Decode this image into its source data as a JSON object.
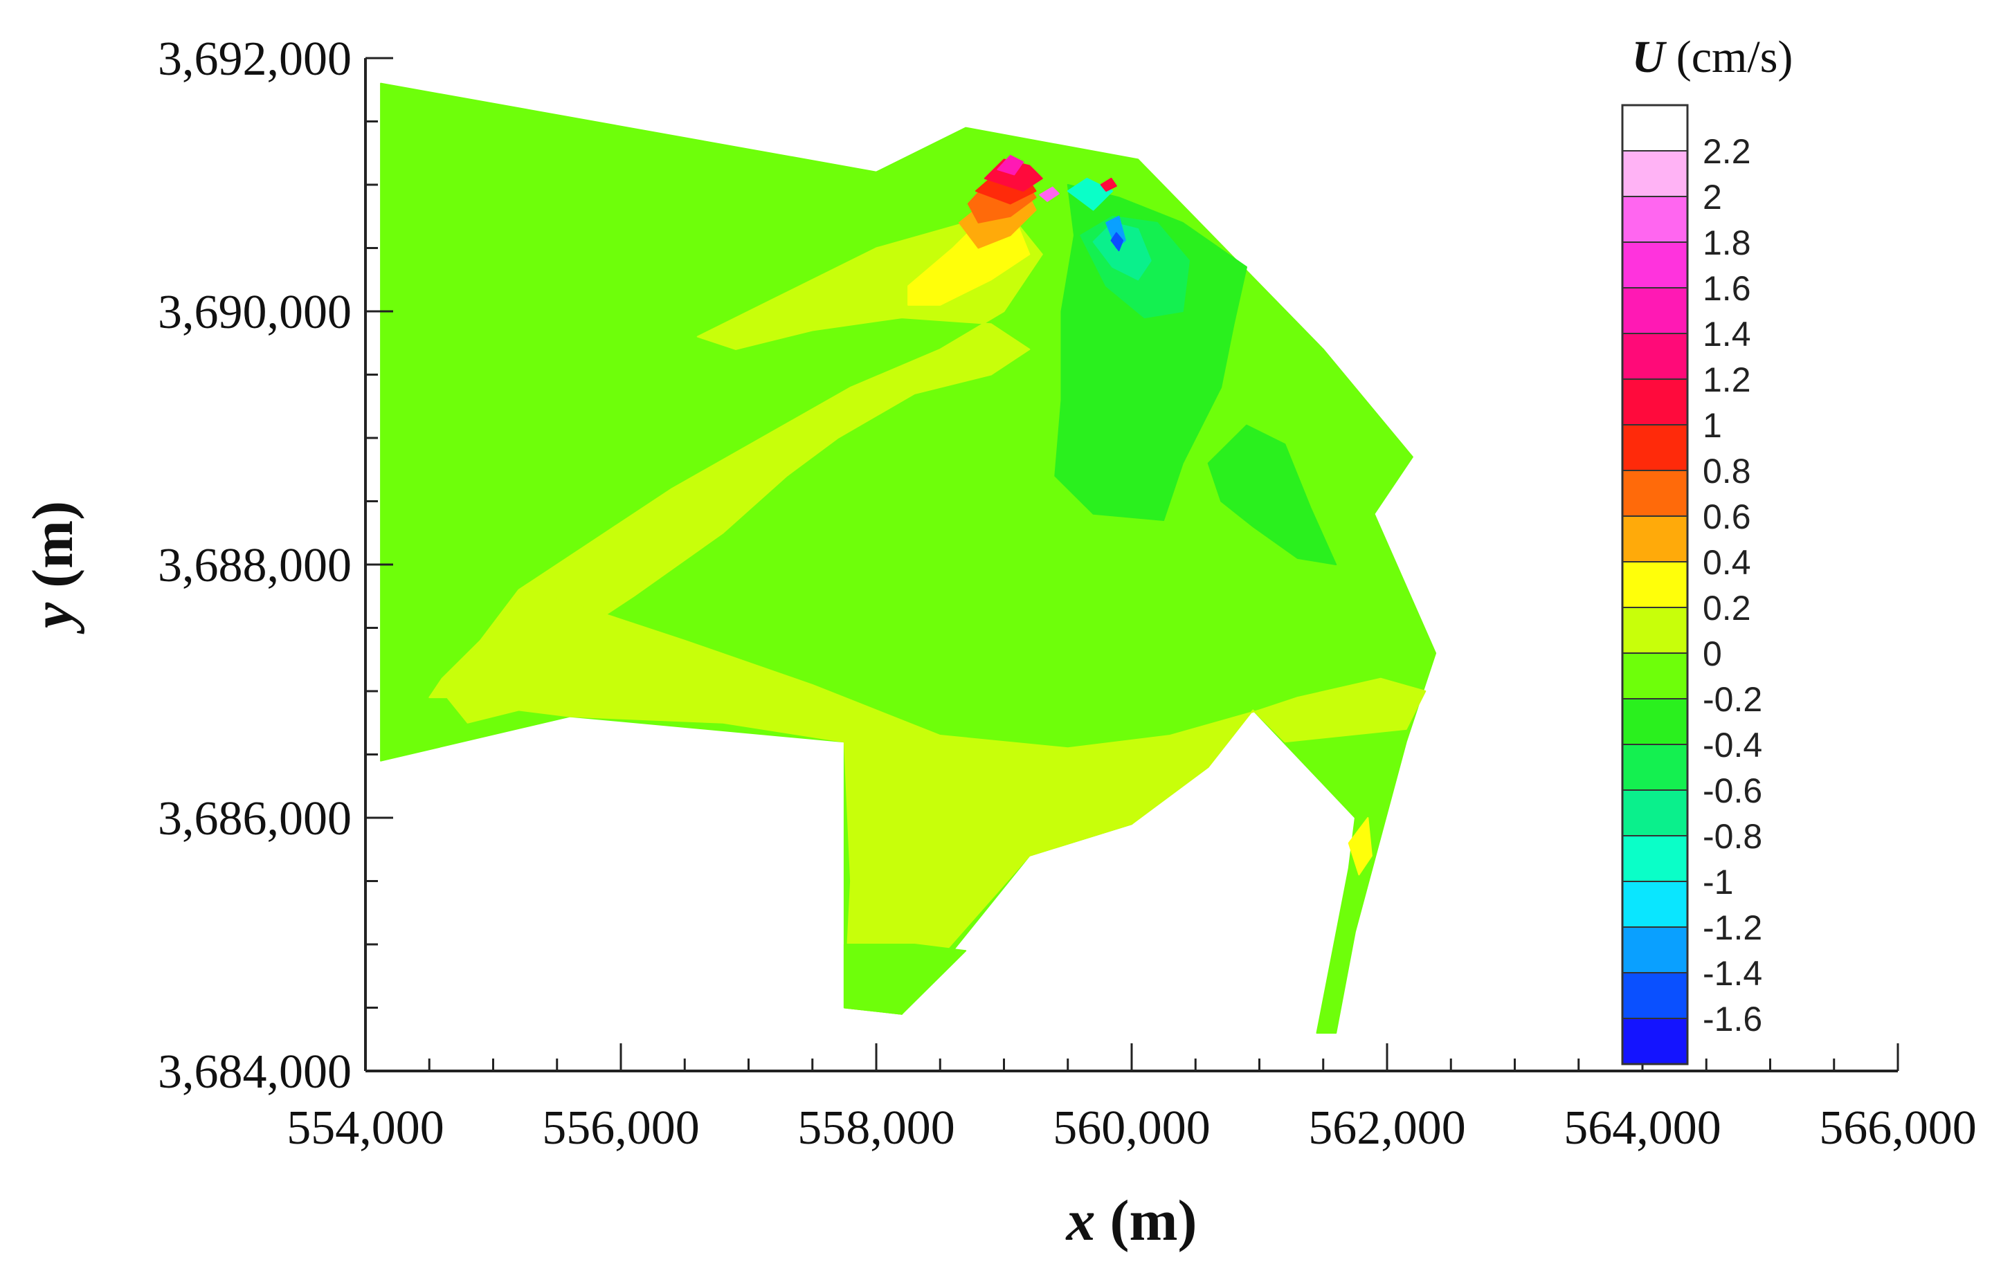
{
  "chart_data": {
    "type": "heatmap",
    "subtype": "filled contour map",
    "xlabel": {
      "var": "x",
      "unit": " (m)"
    },
    "ylabel": {
      "var": "y",
      "unit": " (m)"
    },
    "xlim": [
      554000,
      566000
    ],
    "ylim": [
      3684000,
      3692000
    ],
    "x_ticks": [
      {
        "v": 554000,
        "label": "554,000"
      },
      {
        "v": 556000,
        "label": "556,000"
      },
      {
        "v": 558000,
        "label": "558,000"
      },
      {
        "v": 560000,
        "label": "560,000"
      },
      {
        "v": 562000,
        "label": "562,000"
      },
      {
        "v": 564000,
        "label": "564,000"
      },
      {
        "v": 566000,
        "label": "566,000"
      }
    ],
    "y_ticks": [
      {
        "v": 3684000,
        "label": "3,684,000"
      },
      {
        "v": 3686000,
        "label": "3,686,000"
      },
      {
        "v": 3688000,
        "label": "3,688,000"
      },
      {
        "v": 3690000,
        "label": "3,690,000"
      },
      {
        "v": 3692000,
        "label": "3,692,000"
      }
    ],
    "grid": false,
    "colorbar": {
      "var": "U",
      "unit": " (cm/s)",
      "placement": "right",
      "levels": [
        {
          "label": "2.2",
          "value": 2.2,
          "color": "#ffffff"
        },
        {
          "label": "2",
          "value": 2.0,
          "color": "#ffb3f5"
        },
        {
          "label": "1.8",
          "value": 1.8,
          "color": "#ff66f0"
        },
        {
          "label": "1.6",
          "value": 1.6,
          "color": "#ff33dd"
        },
        {
          "label": "1.4",
          "value": 1.4,
          "color": "#ff19b4"
        },
        {
          "label": "1.2",
          "value": 1.2,
          "color": "#ff0a78"
        },
        {
          "label": "1",
          "value": 1.0,
          "color": "#ff0a3c"
        },
        {
          "label": "0.8",
          "value": 0.8,
          "color": "#ff2a0a"
        },
        {
          "label": "0.6",
          "value": 0.6,
          "color": "#ff6a0a"
        },
        {
          "label": "0.4",
          "value": 0.4,
          "color": "#ffaa0a"
        },
        {
          "label": "0.2",
          "value": 0.2,
          "color": "#ffff0a"
        },
        {
          "label": "0",
          "value": 0.0,
          "color": "#c8ff0a"
        },
        {
          "label": "-0.2",
          "value": -0.2,
          "color": "#6eff0a"
        },
        {
          "label": "-0.4",
          "value": -0.4,
          "color": "#2af01e"
        },
        {
          "label": "-0.6",
          "value": -0.6,
          "color": "#14f050"
        },
        {
          "label": "-0.8",
          "value": -0.8,
          "color": "#0af08c"
        },
        {
          "label": "-1",
          "value": -1.0,
          "color": "#0affc8"
        },
        {
          "label": "-1.2",
          "value": -1.2,
          "color": "#0ae6ff"
        },
        {
          "label": "-1.4",
          "value": -1.4,
          "color": "#0aa0ff"
        },
        {
          "label": "-1.6",
          "value": -1.6,
          "color": "#0a50ff"
        },
        {
          "label": "",
          "value": -1.8,
          "color": "#1414ff"
        }
      ]
    },
    "domain_outline": [
      [
        554120,
        3691800
      ],
      [
        555200,
        3691700
      ],
      [
        556200,
        3691500
      ],
      [
        557200,
        3691400
      ],
      [
        558000,
        3691100
      ],
      [
        558500,
        3691000
      ],
      [
        558700,
        3691450
      ],
      [
        558900,
        3691300
      ],
      [
        559200,
        3691100
      ],
      [
        559600,
        3691050
      ],
      [
        560050,
        3691200
      ],
      [
        560500,
        3690800
      ],
      [
        561000,
        3690350
      ],
      [
        561500,
        3689700
      ],
      [
        561900,
        3689300
      ],
      [
        562200,
        3688850
      ],
      [
        561900,
        3688400
      ],
      [
        562000,
        3688100
      ],
      [
        562200,
        3687800
      ],
      [
        562380,
        3687300
      ],
      [
        562300,
        3686950
      ],
      [
        562150,
        3686600
      ],
      [
        562000,
        3686300
      ],
      [
        561850,
        3685900
      ],
      [
        561850,
        3685600
      ],
      [
        561750,
        3685100
      ],
      [
        561700,
        3684750
      ],
      [
        561600,
        3684300
      ],
      [
        561450,
        3684300
      ],
      [
        561500,
        3684700
      ],
      [
        561600,
        3685100
      ],
      [
        561700,
        3685600
      ],
      [
        561750,
        3686000
      ],
      [
        561550,
        3686300
      ],
      [
        561200,
        3686600
      ],
      [
        560950,
        3686850
      ],
      [
        560600,
        3686400
      ],
      [
        560000,
        3685950
      ],
      [
        559200,
        3685700
      ],
      [
        558500,
        3684900
      ],
      [
        558200,
        3684450
      ],
      [
        557750,
        3684500
      ],
      [
        557800,
        3685500
      ],
      [
        557750,
        3686600
      ],
      [
        556800,
        3686750
      ],
      [
        555600,
        3686800
      ],
      [
        555200,
        3686850
      ],
      [
        554800,
        3686750
      ],
      [
        554300,
        3686500
      ],
      [
        554120,
        3686450
      ]
    ],
    "regions": [
      {
        "level": "-0.2",
        "points": [
          [
            554120,
            3691800
          ],
          [
            558000,
            3691100
          ],
          [
            558700,
            3691450
          ],
          [
            560050,
            3691200
          ],
          [
            561500,
            3689700
          ],
          [
            562200,
            3688850
          ],
          [
            561900,
            3688400
          ],
          [
            562380,
            3687300
          ],
          [
            562150,
            3686600
          ],
          [
            561750,
            3685100
          ],
          [
            561600,
            3684300
          ],
          [
            561450,
            3684300
          ],
          [
            561700,
            3685600
          ],
          [
            561750,
            3686000
          ],
          [
            560950,
            3686850
          ],
          [
            560000,
            3685950
          ],
          [
            559200,
            3685700
          ],
          [
            558200,
            3684450
          ],
          [
            557750,
            3684500
          ],
          [
            557750,
            3686600
          ],
          [
            555600,
            3686800
          ],
          [
            554120,
            3686450
          ]
        ]
      },
      {
        "level": "0",
        "points": [
          [
            556600,
            3689800
          ],
          [
            557200,
            3690100
          ],
          [
            558000,
            3690500
          ],
          [
            558700,
            3690700
          ],
          [
            559100,
            3690700
          ],
          [
            559300,
            3690450
          ],
          [
            559000,
            3690000
          ],
          [
            558500,
            3689700
          ],
          [
            557800,
            3689400
          ],
          [
            557100,
            3689000
          ],
          [
            556400,
            3688600
          ],
          [
            555800,
            3688200
          ],
          [
            555200,
            3687800
          ],
          [
            554900,
            3687400
          ],
          [
            554600,
            3687100
          ],
          [
            554500,
            3686950
          ],
          [
            554800,
            3686950
          ],
          [
            555500,
            3687350
          ],
          [
            556100,
            3687750
          ],
          [
            556800,
            3688250
          ],
          [
            557300,
            3688700
          ],
          [
            557700,
            3689000
          ],
          [
            558300,
            3689350
          ],
          [
            558900,
            3689500
          ],
          [
            559200,
            3689700
          ],
          [
            558900,
            3689900
          ],
          [
            558200,
            3689950
          ],
          [
            557500,
            3689850
          ],
          [
            556900,
            3689700
          ]
        ]
      },
      {
        "level": "0",
        "points": [
          [
            555300,
            3687800
          ],
          [
            556500,
            3687400
          ],
          [
            557500,
            3687050
          ],
          [
            558500,
            3686650
          ],
          [
            559500,
            3686550
          ],
          [
            560300,
            3686650
          ],
          [
            561000,
            3686850
          ],
          [
            561300,
            3686950
          ],
          [
            561950,
            3687100
          ],
          [
            562300,
            3687000
          ],
          [
            562150,
            3686700
          ],
          [
            561200,
            3686600
          ],
          [
            560950,
            3686850
          ],
          [
            560600,
            3686400
          ],
          [
            560000,
            3685950
          ],
          [
            559200,
            3685700
          ],
          [
            558500,
            3684900
          ],
          [
            558200,
            3684450
          ],
          [
            557750,
            3684500
          ],
          [
            557800,
            3685500
          ],
          [
            557750,
            3686600
          ],
          [
            556800,
            3686750
          ],
          [
            555600,
            3686800
          ],
          [
            555200,
            3686850
          ],
          [
            554800,
            3686750
          ],
          [
            554600,
            3687000
          ],
          [
            555000,
            3687500
          ]
        ]
      },
      {
        "level": "-0.2",
        "points": [
          [
            557750,
            3685000
          ],
          [
            558300,
            3685000
          ],
          [
            558700,
            3684950
          ],
          [
            558200,
            3684450
          ],
          [
            557750,
            3684500
          ]
        ]
      },
      {
        "level": "-0.4",
        "points": [
          [
            559500,
            3691000
          ],
          [
            559900,
            3690900
          ],
          [
            560400,
            3690700
          ],
          [
            560900,
            3690350
          ],
          [
            560800,
            3689900
          ],
          [
            560700,
            3689400
          ],
          [
            560400,
            3688800
          ],
          [
            560250,
            3688350
          ],
          [
            559700,
            3688400
          ],
          [
            559400,
            3688700
          ],
          [
            559450,
            3689300
          ],
          [
            559450,
            3690000
          ],
          [
            559550,
            3690600
          ]
        ]
      },
      {
        "level": "-0.4",
        "points": [
          [
            560600,
            3688800
          ],
          [
            560900,
            3689100
          ],
          [
            561200,
            3688950
          ],
          [
            561400,
            3688450
          ],
          [
            561600,
            3688000
          ],
          [
            561300,
            3688050
          ],
          [
            560950,
            3688300
          ],
          [
            560700,
            3688500
          ]
        ]
      },
      {
        "level": "-0.6",
        "points": [
          [
            559600,
            3690600
          ],
          [
            559800,
            3690200
          ],
          [
            560100,
            3689950
          ],
          [
            560400,
            3690000
          ],
          [
            560450,
            3690400
          ],
          [
            560200,
            3690700
          ],
          [
            559850,
            3690750
          ]
        ]
      },
      {
        "level": "-0.8",
        "points": [
          [
            559700,
            3690550
          ],
          [
            559850,
            3690350
          ],
          [
            560050,
            3690250
          ],
          [
            560150,
            3690400
          ],
          [
            560050,
            3690650
          ],
          [
            559850,
            3690700
          ]
        ]
      },
      {
        "level": "-1",
        "points": [
          [
            559500,
            3690950
          ],
          [
            559700,
            3690800
          ],
          [
            559850,
            3690950
          ],
          [
            559650,
            3691050
          ]
        ]
      },
      {
        "level": "-1.4",
        "points": [
          [
            559800,
            3690700
          ],
          [
            559880,
            3690500
          ],
          [
            559950,
            3690560
          ],
          [
            559900,
            3690750
          ]
        ]
      },
      {
        "level": "-1.6",
        "points": [
          [
            559840,
            3690560
          ],
          [
            559900,
            3690480
          ],
          [
            559930,
            3690560
          ],
          [
            559880,
            3690620
          ]
        ]
      },
      {
        "level": "0.2",
        "points": [
          [
            558250,
            3690200
          ],
          [
            558600,
            3690500
          ],
          [
            558900,
            3690800
          ],
          [
            559100,
            3690700
          ],
          [
            559200,
            3690450
          ],
          [
            558900,
            3690250
          ],
          [
            558500,
            3690050
          ],
          [
            558250,
            3690050
          ]
        ]
      },
      {
        "level": "0.2",
        "points": [
          [
            561700,
            3685800
          ],
          [
            561850,
            3686000
          ],
          [
            561880,
            3685700
          ],
          [
            561780,
            3685550
          ]
        ]
      },
      {
        "level": "0.4",
        "points": [
          [
            558650,
            3690700
          ],
          [
            558900,
            3690900
          ],
          [
            559150,
            3691000
          ],
          [
            559250,
            3690800
          ],
          [
            559050,
            3690600
          ],
          [
            558800,
            3690500
          ]
        ]
      },
      {
        "level": "0.6",
        "points": [
          [
            558720,
            3690850
          ],
          [
            558900,
            3691050
          ],
          [
            559150,
            3691050
          ],
          [
            559250,
            3690900
          ],
          [
            559050,
            3690750
          ],
          [
            558800,
            3690700
          ]
        ]
      },
      {
        "level": "0.8",
        "points": [
          [
            558780,
            3690950
          ],
          [
            558950,
            3691100
          ],
          [
            559150,
            3691100
          ],
          [
            559250,
            3690950
          ],
          [
            559050,
            3690850
          ]
        ]
      },
      {
        "level": "1",
        "points": [
          [
            558850,
            3691050
          ],
          [
            559000,
            3691200
          ],
          [
            559200,
            3691150
          ],
          [
            559300,
            3691050
          ],
          [
            559150,
            3690950
          ]
        ]
      },
      {
        "level": "1.4",
        "points": [
          [
            558950,
            3691120
          ],
          [
            559050,
            3691230
          ],
          [
            559150,
            3691180
          ],
          [
            559080,
            3691080
          ]
        ]
      },
      {
        "level": "1.8",
        "points": [
          [
            559280,
            3690920
          ],
          [
            559380,
            3690980
          ],
          [
            559430,
            3690930
          ],
          [
            559340,
            3690870
          ]
        ]
      },
      {
        "level": "1",
        "points": [
          [
            559760,
            3691000
          ],
          [
            559840,
            3691050
          ],
          [
            559880,
            3690990
          ],
          [
            559800,
            3690950
          ]
        ]
      }
    ]
  }
}
